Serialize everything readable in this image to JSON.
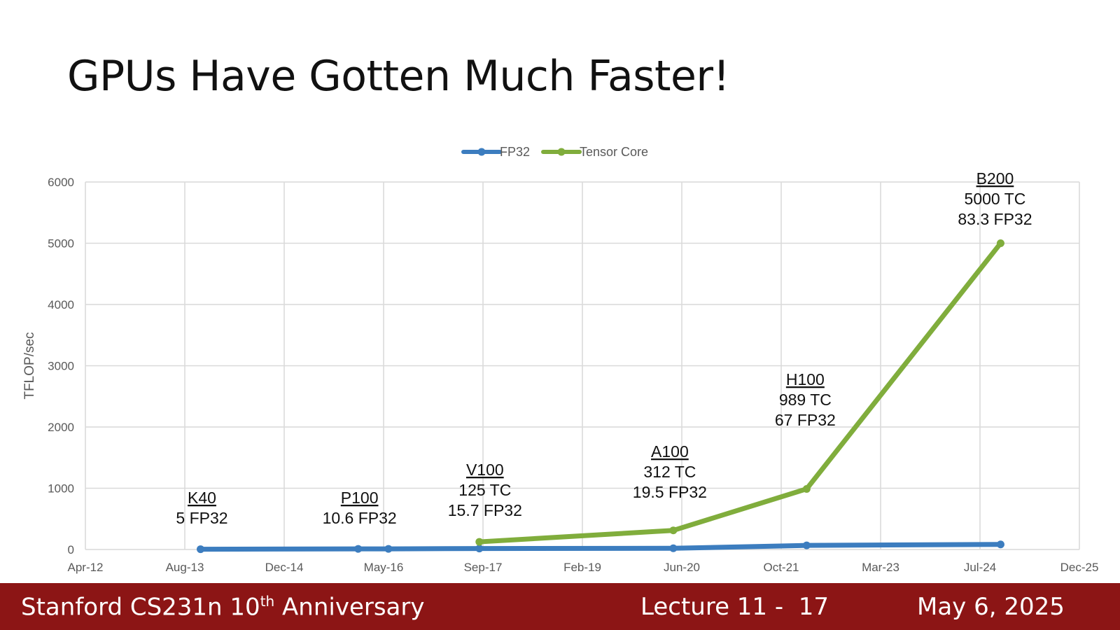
{
  "slide": {
    "title": "GPUs Have Gotten Much Faster!"
  },
  "footer": {
    "course_prefix": "Stanford CS231n 10",
    "course_sup": "th",
    "course_suffix": " Anniversary",
    "lecture": "Lecture 11 -  17",
    "date": "May 6, 2025"
  },
  "colors": {
    "fp32": "#3c7dbf",
    "tensor_core": "#80ad3c",
    "footer_bg": "#8c1515",
    "grid": "#d9d9d9"
  },
  "chart_data": {
    "type": "line",
    "ylabel": "TFLOP/sec",
    "ylim": [
      0,
      6000
    ],
    "yticks": [
      "0",
      "1000",
      "2000",
      "3000",
      "4000",
      "5000",
      "6000"
    ],
    "xlim": [
      "2012-04",
      "2025-12"
    ],
    "xticks": [
      "Apr-12",
      "Aug-13",
      "Dec-14",
      "May-16",
      "Sep-17",
      "Feb-19",
      "Jun-20",
      "Oct-21",
      "Mar-23",
      "Jul-24",
      "Dec-25"
    ],
    "grid": true,
    "legend": "top-center",
    "series": [
      {
        "name": "FP32",
        "points": [
          {
            "x": "2013-11",
            "y": 5
          },
          {
            "x": "2016-01",
            "y": 10.6
          },
          {
            "x": "2016-06",
            "y": 10.6
          },
          {
            "x": "2017-09",
            "y": 15.7
          },
          {
            "x": "2020-05",
            "y": 19.5
          },
          {
            "x": "2022-03",
            "y": 67
          },
          {
            "x": "2024-11",
            "y": 83.3
          }
        ]
      },
      {
        "name": "Tensor Core",
        "points": [
          {
            "x": "2017-09",
            "y": 125
          },
          {
            "x": "2020-05",
            "y": 312
          },
          {
            "x": "2022-03",
            "y": 989
          },
          {
            "x": "2024-11",
            "y": 5000
          }
        ]
      }
    ],
    "annotations": [
      {
        "name": "K40",
        "lines": [
          "5 FP32"
        ],
        "x": "2013-11",
        "y": 5
      },
      {
        "name": "P100",
        "lines": [
          "10.6 FP32"
        ],
        "x": "2016-01",
        "y": 10.6
      },
      {
        "name": "V100",
        "lines": [
          "125 TC",
          "15.7 FP32"
        ],
        "x": "2017-09",
        "y": 125
      },
      {
        "name": "A100",
        "lines": [
          "312 TC",
          "19.5 FP32"
        ],
        "x": "2020-05",
        "y": 312
      },
      {
        "name": "H100",
        "lines": [
          "989 TC",
          "67 FP32"
        ],
        "x": "2022-03",
        "y": 989
      },
      {
        "name": "B200",
        "lines": [
          "5000 TC",
          "83.3 FP32"
        ],
        "x": "2024-11",
        "y": 5000
      }
    ]
  }
}
